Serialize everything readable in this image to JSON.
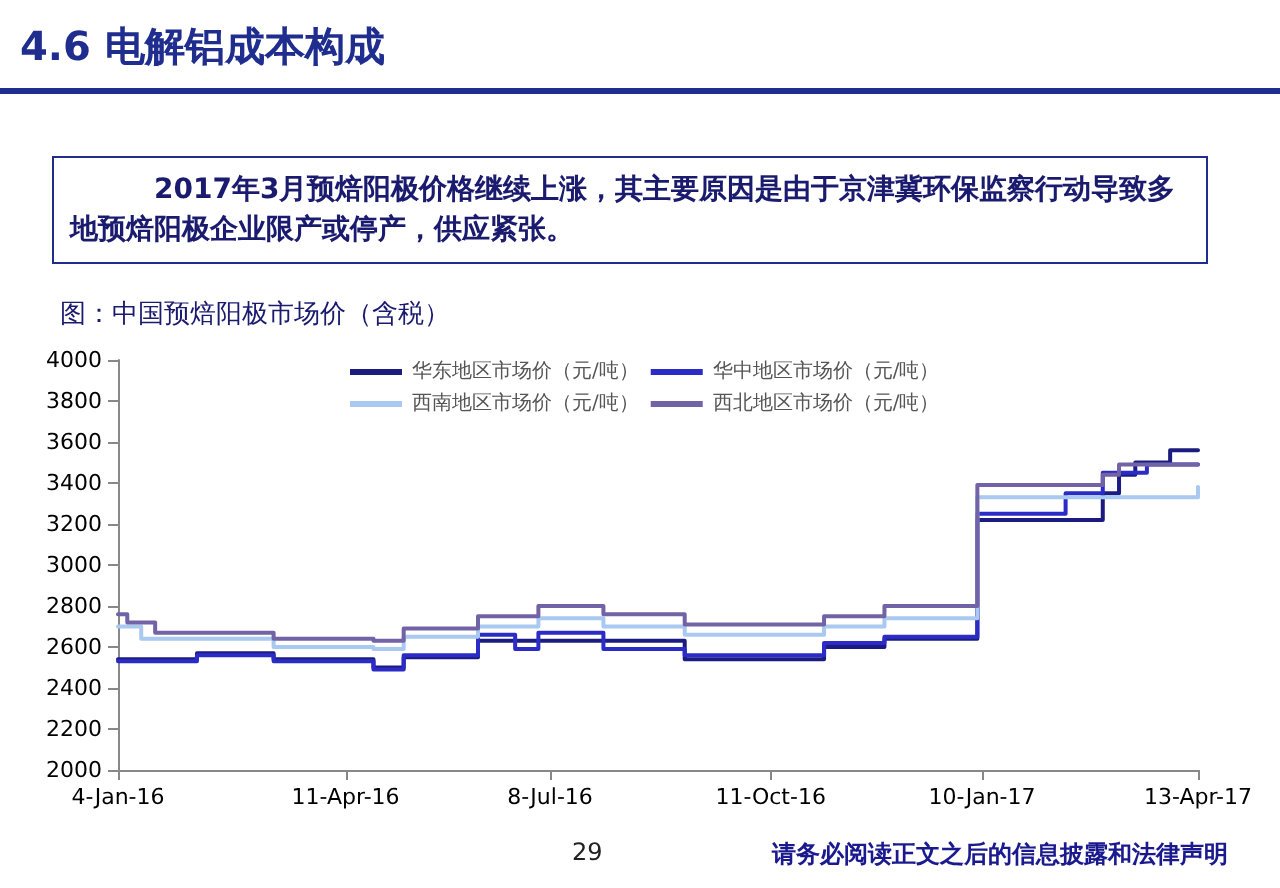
{
  "chart_data": {
    "type": "step",
    "title": "4.6 电解铝成本构成",
    "subtitle": "2017年3月预焙阳极价格继续上涨，其主要原因是由于京津冀环保监察行动导致多地预焙阳极企业限产或停产，供应紧张。",
    "xlabel": "图：中国预焙阳极市场价（含税）",
    "annotations": [
      "29",
      "请务必阅读正文之后的信息披露和法律声明"
    ],
    "series": [
      {
        "name": "华东地区市场价（元/吨）",
        "color": "#1c1c80",
        "x": [
          "2016-01-04",
          "2016-02-07",
          "2016-03-11",
          "2016-04-23",
          "2016-05-06",
          "2016-06-07",
          "2016-07-31",
          "2016-09-04",
          "2016-11-03",
          "2016-11-29",
          "2017-01-08",
          "2017-03-03",
          "2017-03-10",
          "2017-03-17",
          "2017-04-01",
          "2017-04-13"
        ],
        "values": [
          2540,
          2570,
          2540,
          2500,
          2550,
          2630,
          2630,
          2540,
          2600,
          2640,
          3220,
          3350,
          3440,
          3500,
          3560,
          3560
        ]
      },
      {
        "name": "华中地区市场价（元/吨）",
        "color": "#2b2bc8",
        "x": [
          "2016-01-04",
          "2016-02-07",
          "2016-03-11",
          "2016-04-23",
          "2016-05-06",
          "2016-06-07",
          "2016-06-23",
          "2016-07-03",
          "2016-07-31",
          "2016-09-04",
          "2016-11-03",
          "2016-11-29",
          "2017-01-08",
          "2017-02-15",
          "2017-03-03",
          "2017-03-22",
          "2017-04-13"
        ],
        "values": [
          2530,
          2560,
          2530,
          2490,
          2560,
          2660,
          2590,
          2670,
          2590,
          2560,
          2620,
          2650,
          3250,
          3350,
          3450,
          3490,
          3490
        ]
      },
      {
        "name": "西南地区市场价（元/吨）",
        "color": "#a9c9f0",
        "x": [
          "2016-01-04",
          "2016-01-14",
          "2016-03-11",
          "2016-04-23",
          "2016-05-06",
          "2016-06-07",
          "2016-07-03",
          "2016-07-31",
          "2016-09-04",
          "2016-11-03",
          "2016-11-29",
          "2017-01-08",
          "2017-04-10",
          "2017-04-13"
        ],
        "values": [
          2700,
          2640,
          2600,
          2590,
          2650,
          2700,
          2740,
          2700,
          2660,
          2700,
          2740,
          3330,
          3330,
          3380
        ]
      },
      {
        "name": "西北地区市场价（元/吨）",
        "color": "#7262a6",
        "x": [
          "2016-01-04",
          "2016-01-08",
          "2016-01-20",
          "2016-03-11",
          "2016-04-23",
          "2016-05-06",
          "2016-06-07",
          "2016-07-03",
          "2016-07-31",
          "2016-09-04",
          "2016-11-03",
          "2016-11-29",
          "2017-01-08",
          "2017-03-03",
          "2017-03-10",
          "2017-04-13"
        ],
        "values": [
          2760,
          2720,
          2670,
          2640,
          2630,
          2690,
          2750,
          2800,
          2760,
          2710,
          2750,
          2800,
          3390,
          3440,
          3490,
          3490
        ]
      }
    ],
    "xlim": [
      "2016-01-04",
      "2017-04-13"
    ],
    "xticks": [
      {
        "value": "2016-01-04",
        "label": "4-Jan-16"
      },
      {
        "value": "2016-04-11",
        "label": "11-Apr-16"
      },
      {
        "value": "2016-07-08",
        "label": "8-Jul-16"
      },
      {
        "value": "2016-10-11",
        "label": "11-Oct-16"
      },
      {
        "value": "2017-01-10",
        "label": "10-Jan-17"
      },
      {
        "value": "2017-04-13",
        "label": "13-Apr-17"
      }
    ],
    "ylim": [
      2000,
      4000
    ],
    "yticks": [
      2000,
      2200,
      2400,
      2600,
      2800,
      3000,
      3200,
      3400,
      3600,
      3800,
      4000
    ],
    "grid": false,
    "legend": "top",
    "marker": "none",
    "line_style": "solid"
  }
}
